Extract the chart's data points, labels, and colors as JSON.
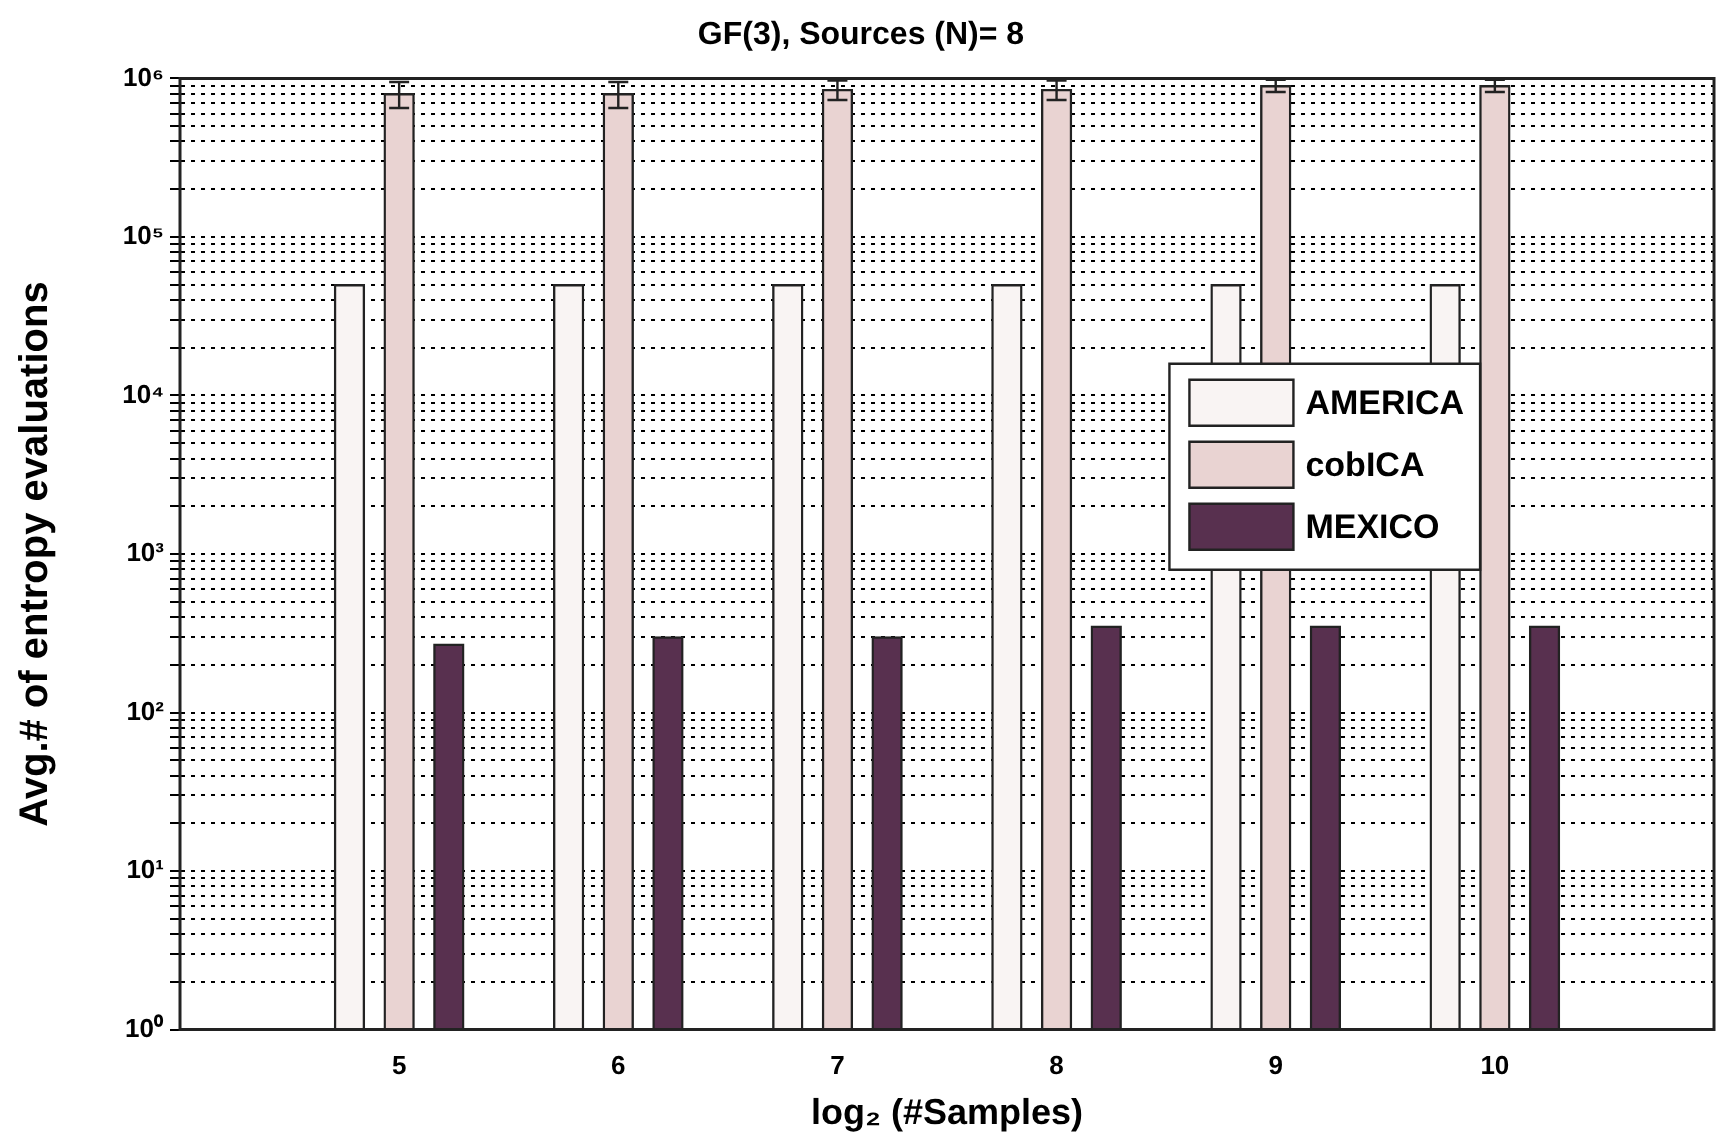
{
  "chart_data": {
    "type": "bar",
    "title": "GF(3), Sources (N)= 8",
    "xlabel": "log₂ (#Samples)",
    "ylabel": "Avg.# of entropy evaluations",
    "x": [
      5,
      6,
      7,
      8,
      9,
      10
    ],
    "xlim": [
      4,
      11
    ],
    "xticks": [
      5,
      6,
      7,
      8,
      9,
      10
    ],
    "log": "y",
    "ylim": [
      1,
      1000000
    ],
    "yticks": [
      {
        "value": 1,
        "label": "10⁰"
      },
      {
        "value": 2,
        "label": null
      },
      {
        "value": 3,
        "label": null
      },
      {
        "value": 4,
        "label": null
      },
      {
        "value": 5,
        "label": null
      },
      {
        "value": 6,
        "label": null
      },
      {
        "value": 7,
        "label": null
      },
      {
        "value": 8,
        "label": null
      },
      {
        "value": 9,
        "label": null
      },
      {
        "value": 10,
        "label": "10¹"
      },
      {
        "value": 20,
        "label": null
      },
      {
        "value": 30,
        "label": null
      },
      {
        "value": 40,
        "label": null
      },
      {
        "value": 50,
        "label": null
      },
      {
        "value": 60,
        "label": null
      },
      {
        "value": 70,
        "label": null
      },
      {
        "value": 80,
        "label": null
      },
      {
        "value": 90,
        "label": null
      },
      {
        "value": 100,
        "label": "10²"
      },
      {
        "value": 200,
        "label": null
      },
      {
        "value": 300,
        "label": null
      },
      {
        "value": 400,
        "label": null
      },
      {
        "value": 500,
        "label": null
      },
      {
        "value": 600,
        "label": null
      },
      {
        "value": 700,
        "label": null
      },
      {
        "value": 800,
        "label": null
      },
      {
        "value": 900,
        "label": null
      },
      {
        "value": 1000,
        "label": "10³"
      },
      {
        "value": 2000,
        "label": null
      },
      {
        "value": 3000,
        "label": null
      },
      {
        "value": 4000,
        "label": null
      },
      {
        "value": 5000,
        "label": null
      },
      {
        "value": 6000,
        "label": null
      },
      {
        "value": 7000,
        "label": null
      },
      {
        "value": 8000,
        "label": null
      },
      {
        "value": 9000,
        "label": null
      },
      {
        "value": 10000,
        "label": "10⁴"
      },
      {
        "value": 20000,
        "label": null
      },
      {
        "value": 30000,
        "label": null
      },
      {
        "value": 40000,
        "label": null
      },
      {
        "value": 50000,
        "label": null
      },
      {
        "value": 60000,
        "label": null
      },
      {
        "value": 70000,
        "label": null
      },
      {
        "value": 80000,
        "label": null
      },
      {
        "value": 90000,
        "label": null
      },
      {
        "value": 100000,
        "label": "10⁵"
      },
      {
        "value": 200000,
        "label": null
      },
      {
        "value": 300000,
        "label": null
      },
      {
        "value": 400000,
        "label": null
      },
      {
        "value": 500000,
        "label": null
      },
      {
        "value": 600000,
        "label": null
      },
      {
        "value": 700000,
        "label": null
      },
      {
        "value": 800000,
        "label": null
      },
      {
        "value": 900000,
        "label": null
      },
      {
        "value": 1000000,
        "label": "10⁶"
      }
    ],
    "grid": "y",
    "legend": "right",
    "series": [
      {
        "name": "AMERICA",
        "color": "#f9f4f3",
        "values": [
          50000,
          50000,
          50000,
          50000,
          50000,
          50000
        ]
      },
      {
        "name": "cobICA",
        "color": "#e9d3d2",
        "values": [
          800000,
          800000,
          850000,
          850000,
          900000,
          900000
        ],
        "errors": [
          150000,
          150000,
          120000,
          120000,
          80000,
          80000
        ]
      },
      {
        "name": "MEXICO",
        "color": "#58304f",
        "values": [
          270,
          300,
          300,
          350,
          350,
          350
        ]
      }
    ]
  }
}
